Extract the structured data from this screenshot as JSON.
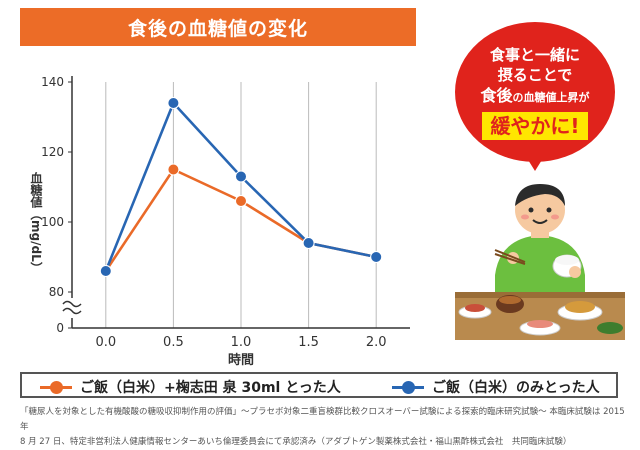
{
  "title": "食後の血糖値の変化",
  "bubble": {
    "line1": "食事と一緒に",
    "line2": "摂ることで",
    "line3_big": "食後",
    "line3_small": "の血糖値上昇が",
    "line4": "緩やかに!"
  },
  "chart_data": {
    "type": "line",
    "title": "",
    "xlabel": "時間",
    "ylabel": "血糖値（mg/dL）",
    "x": [
      0.0,
      0.5,
      1.0,
      1.5,
      2.0
    ],
    "x_tick_labels": [
      "0.0",
      "0.5",
      "1.0",
      "1.5",
      "2.0"
    ],
    "y_tick_labels": [
      "0",
      "80",
      "100",
      "120",
      "140"
    ],
    "ylim": [
      80,
      140
    ],
    "axis_break": true,
    "grid": "vertical",
    "legend_position": "bottom",
    "series": [
      {
        "name": "ご飯（白米）+椈志田 泉 30ml とった人",
        "color": "#ea6a28",
        "values": [
          86,
          115,
          106,
          94,
          90
        ]
      },
      {
        "name": "ご飯（白米）のみとった人",
        "color": "#2866b3",
        "values": [
          86,
          134,
          113,
          94,
          90
        ]
      }
    ]
  },
  "footnote": {
    "line1": "「糖尿人を対象とした有機酸酸の糖吸収抑制作用の評価」～プラセボ対象二重盲検群比較クロスオーバー試験による探索的臨床研究試験～ 本臨床試験は 2015 年",
    "line2": "8 月 27 日、特定非営利法人健康情報センターあいち倫理委員会にて承認済み（アダプトゲン製薬株式会社・福山黒酢株式会社　共同臨床試験）"
  }
}
